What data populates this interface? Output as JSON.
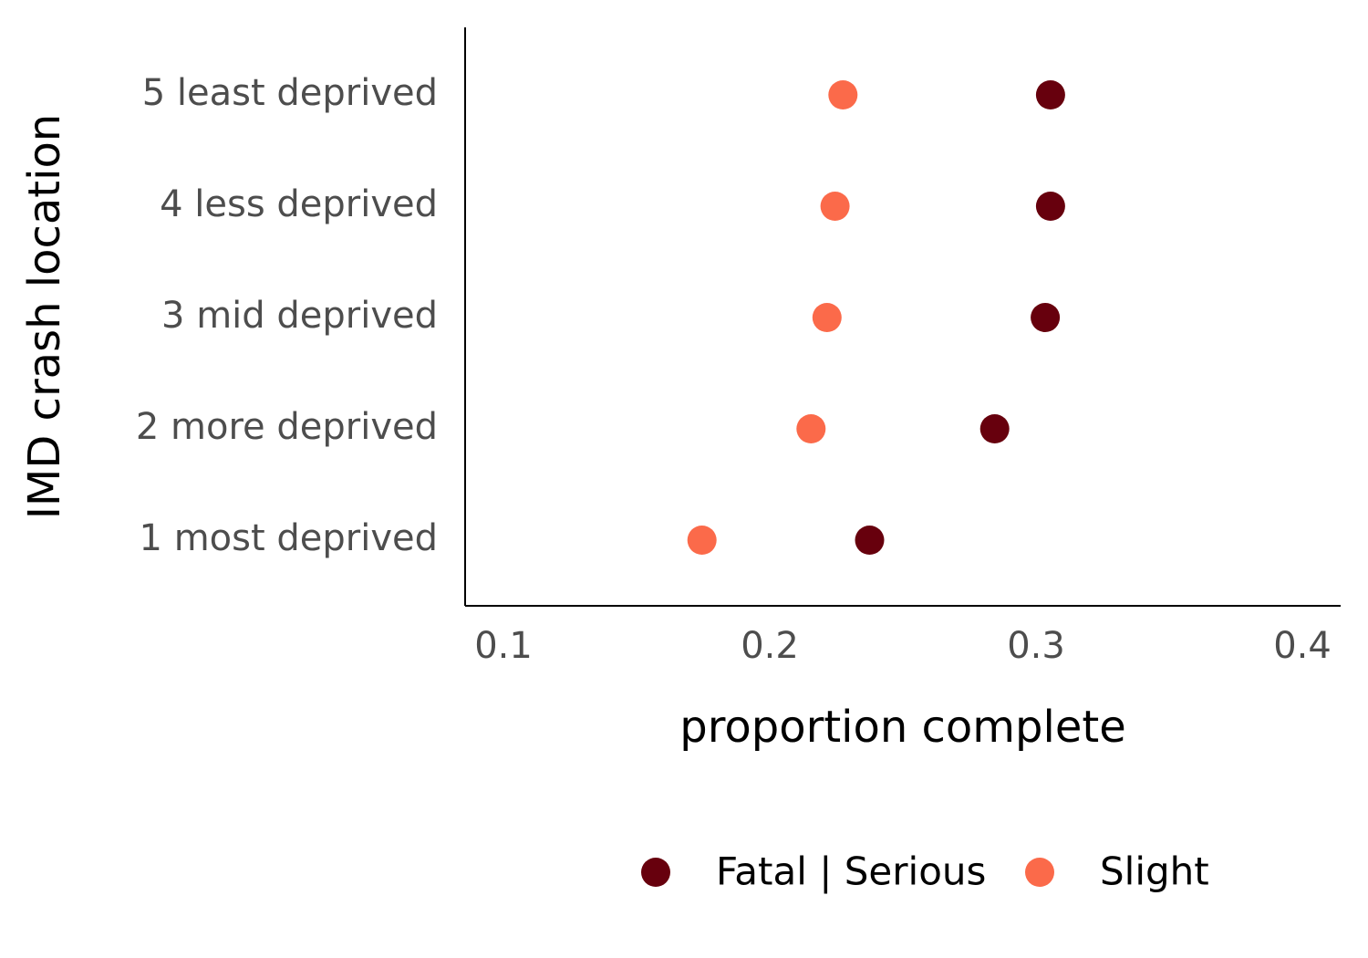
{
  "chart_data": {
    "type": "scatter",
    "title": "",
    "xlabel": "proportion complete",
    "ylabel": "IMD crash location",
    "xlim": [
      0.087,
      0.416
    ],
    "x_ticks": [
      "0.1",
      "0.2",
      "0.3",
      "0.4"
    ],
    "categories": [
      "1 most deprived",
      "2 more deprived",
      "3 mid deprived",
      "4 less deprived",
      "5 least deprived"
    ],
    "series": [
      {
        "name": "Fatal | Serious",
        "color": "#67000d",
        "values": [
          0.239,
          0.286,
          0.305,
          0.307,
          0.307
        ]
      },
      {
        "name": "Slight",
        "color": "#fb6a4a",
        "values": [
          0.176,
          0.217,
          0.223,
          0.226,
          0.229
        ]
      }
    ],
    "grid": false,
    "legend_position": "bottom"
  }
}
